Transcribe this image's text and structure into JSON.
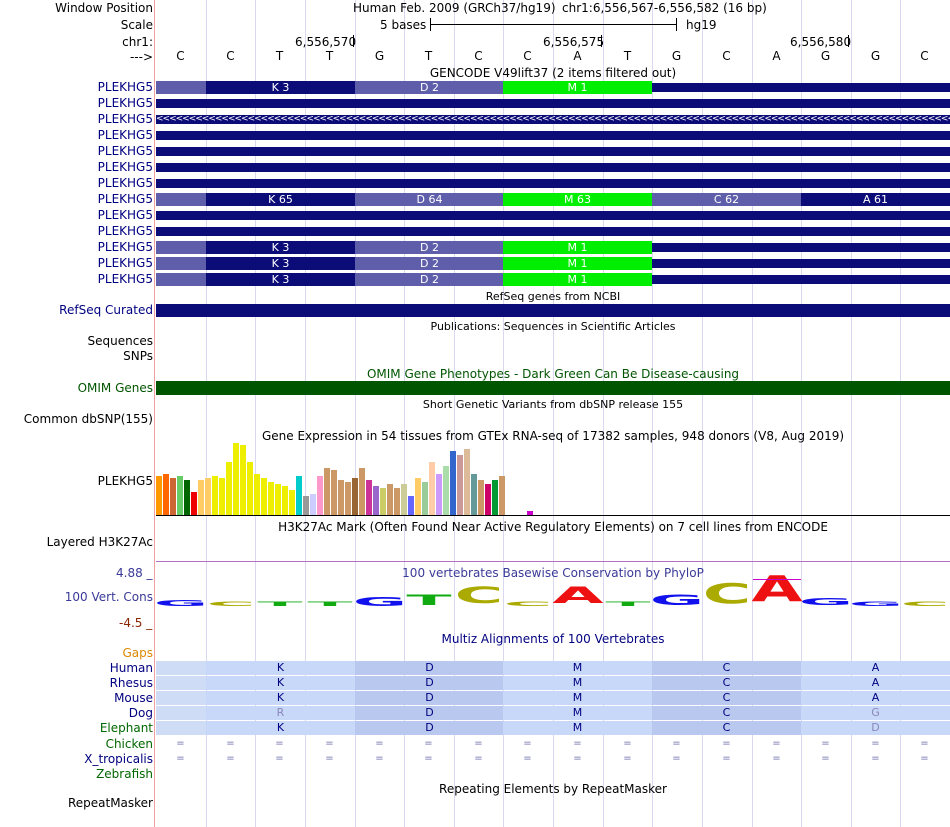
{
  "header": {
    "window_position_label": "Window Position",
    "scale_label": "Scale",
    "chr_label": "chr1:",
    "arrow_label": "--->",
    "assembly_text": "Human Feb. 2009 (GRCh37/hg19)",
    "position_text": "chr1:6,556,567-6,556,582 (16 bp)",
    "scale_text": "5 bases",
    "scale_db": "hg19",
    "coord_ticks": [
      "6,556,570",
      "6,556,575",
      "6,556,580"
    ]
  },
  "bases": [
    "C",
    "C",
    "T",
    "T",
    "G",
    "T",
    "C",
    "C",
    "A",
    "T",
    "G",
    "C",
    "A",
    "G",
    "G",
    "C"
  ],
  "gencode": {
    "title": "GENCODE V49lift37 (2 items filtered out)",
    "gene_labels": [
      "PLEKHG5",
      "PLEKHG5",
      "PLEKHG5",
      "PLEKHG5",
      "PLEKHG5",
      "PLEKHG5",
      "PLEKHG5",
      "PLEKHG5",
      "PLEKHG5",
      "PLEKHG5",
      "PLEKHG5",
      "PLEKHG5",
      "PLEKHG5"
    ],
    "row1_segments": [
      "K 3",
      "D 2",
      "M 1"
    ],
    "row8_segments": [
      "K 65",
      "D 64",
      "M 63",
      "C 62",
      "A 61"
    ],
    "row11_segments": [
      "K 3",
      "D 2",
      "M 1"
    ],
    "row12_segments": [
      "K 3",
      "D 2",
      "M 1"
    ],
    "row13_segments": [
      "K 3",
      "D 2",
      "M 1"
    ],
    "strand_arrows": "<<<<<<<<<<<<<<<<<<<<<<<<<<<<<<<<<<<<<<<<<<<<<<<<<<<<<<<<<<<<<<<<<<<<<<<<<<<<<<<<<<<<<<<<<<<<<<<<<<<<<<<<<<<<<<<<<<<<<<<<<<<<<<<<<<<<"
  },
  "refseq": {
    "title": "RefSeq genes from NCBI",
    "label": "RefSeq Curated"
  },
  "publications": {
    "title": "Publications: Sequences in Scientific Articles",
    "label": "Sequences"
  },
  "snps": {
    "label": "SNPs"
  },
  "omim": {
    "title": "OMIM Gene Phenotypes - Dark Green Can Be Disease-causing",
    "label": "OMIM Genes"
  },
  "dbsnp": {
    "title": "Short Genetic Variants from dbSNP release 155",
    "label": "Common dbSNP(155)"
  },
  "gtex": {
    "title": "Gene Expression in 54 tissues from GTEx RNA-seq of 17382 samples, 948 donors (V8, Aug 2019)",
    "label": "PLEKHG5",
    "values": [
      38,
      40,
      36,
      38,
      34,
      22,
      34,
      36,
      38,
      36,
      52,
      70,
      68,
      52,
      40,
      36,
      32,
      30,
      28,
      24,
      38,
      18,
      20,
      38,
      46,
      44,
      34,
      32,
      36,
      46,
      34,
      28,
      26,
      30,
      26,
      30,
      18,
      36,
      32,
      52,
      40,
      48,
      62,
      58,
      64,
      40,
      34,
      30,
      34,
      38,
      12,
      12,
      14,
      4
    ],
    "colors": [
      "#ff9900",
      "#ff6600",
      "#cc6633",
      "#66cc66",
      "#006600",
      "#ee0000",
      "#ffcc66",
      "#ffcc66",
      "#eeee00",
      "#eeee00",
      "#eeee00",
      "#eeee00",
      "#eeee00",
      "#eeee00",
      "#eeee00",
      "#eeee00",
      "#eeee00",
      "#eeee00",
      "#eeee00",
      "#eeee00",
      "#00cccc",
      "#999999",
      "#ccccff",
      "#ff99cc",
      "#cc9966",
      "#cc9966",
      "#cc9966",
      "#cc9966",
      "#996633",
      "#cc9966",
      "#cc3399",
      "#9966cc",
      "#cccc66",
      "#cc9966",
      "#cc9966",
      "#cccc99",
      "#6666ff",
      "#ffcc66",
      "#99cc99",
      "#ffccaa",
      "#cc99ff",
      "#aaddaa",
      "#3366cc",
      "#cc9999",
      "#ddbb99",
      "#669999",
      "#cc9966",
      "#cc0066",
      "#009933",
      "#cc9966",
      "#ffffff",
      "#ffffff",
      "#ffffff",
      "#cc00cc"
    ]
  },
  "h3k27ac": {
    "title": "H3K27Ac Mark (Often Found Near Active Regulatory Elements) on 7 cell lines from ENCODE",
    "label": "Layered H3K27Ac"
  },
  "conservation": {
    "title": "100 vertebrates Basewise Conservation by PhyloP",
    "label": "100 Vert. Cons",
    "max_label": "4.88 _",
    "min_label": "-4.5 _",
    "logo_letters": [
      "G",
      "C",
      "T",
      "T",
      "G",
      "T",
      "C",
      "C",
      "A",
      "T",
      "G",
      "C",
      "A",
      "G",
      "G",
      "C"
    ],
    "logo_scores": [
      0.2,
      0.1,
      0.15,
      0.05,
      0.3,
      0.35,
      0.55,
      0.05,
      0.55,
      0.1,
      0.35,
      0.7,
      0.9,
      0.25,
      0.1,
      0.1
    ]
  },
  "multiz": {
    "title": "Multiz Alignments of 100 Vertebrates",
    "gaps_label": "Gaps",
    "species": [
      {
        "name": "Human",
        "residues": [
          "K",
          "D",
          "M",
          "C",
          "A"
        ]
      },
      {
        "name": "Rhesus",
        "residues": [
          "K",
          "D",
          "M",
          "C",
          "A"
        ]
      },
      {
        "name": "Mouse",
        "residues": [
          "K",
          "D",
          "M",
          "C",
          "A"
        ]
      },
      {
        "name": "Dog",
        "residues": [
          "R",
          "D",
          "M",
          "C",
          "G"
        ]
      },
      {
        "name": "Elephant",
        "residues": [
          "K",
          "D",
          "M",
          "C",
          "D"
        ]
      }
    ],
    "eq_species": [
      "Chicken",
      "X_tropicalis"
    ],
    "eq_symbol": "=",
    "last_species": "Zebrafish"
  },
  "repeatmasker": {
    "title": "Repeating Elements by RepeatMasker",
    "label": "RepeatMasker"
  },
  "colors": {
    "gene": "#0c0c78",
    "exon_light": "#5e5eaa",
    "exon_green": "#00ee00",
    "omim": "#005500",
    "cons_blue": "#3a3a98"
  }
}
